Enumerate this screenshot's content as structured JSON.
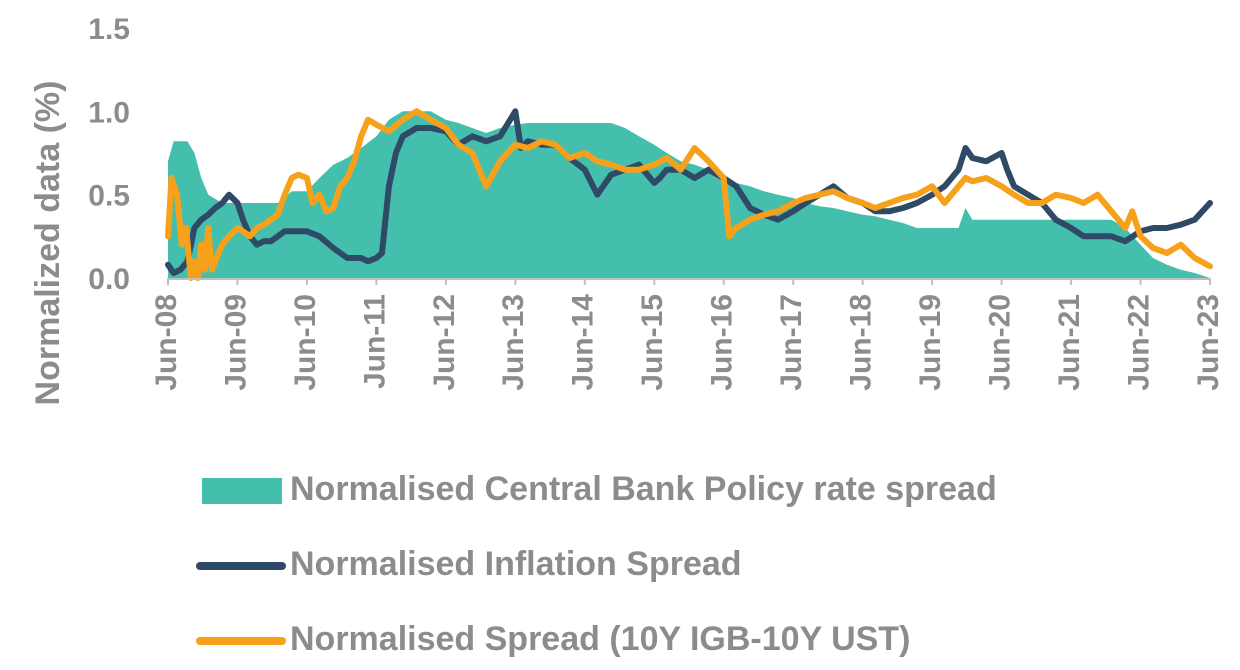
{
  "chart_data": {
    "type": "area+line",
    "ylabel": "Normalized data (%)",
    "ylim": [
      0,
      1.5
    ],
    "yticks": [
      "0.0",
      "0.5",
      "1.0",
      "1.5"
    ],
    "categories": [
      "Jun-08",
      "Jun-09",
      "Jun-10",
      "Jun-11",
      "Jun-12",
      "Jun-13",
      "Jun-14",
      "Jun-15",
      "Jun-16",
      "Jun-17",
      "Jun-18",
      "Jun-19",
      "Jun-20",
      "Jun-21",
      "Jun-22",
      "Jun-23"
    ],
    "grid": false,
    "legend_position": "bottom",
    "colors": {
      "policy": "#45bfad",
      "inflation": "#2f4a66",
      "bond": "#f7a11a",
      "text": "#8c8c8c"
    },
    "series": [
      {
        "name": "Normalised Central Bank Policy rate spread",
        "kind": "area",
        "x": [
          2008.42,
          2008.5,
          2008.6,
          2008.7,
          2008.8,
          2008.9,
          2009.0,
          2009.2,
          2009.42,
          2009.6,
          2009.8,
          2010.0,
          2010.2,
          2010.42,
          2010.6,
          2010.8,
          2011.0,
          2011.2,
          2011.42,
          2011.6,
          2011.8,
          2012.0,
          2012.2,
          2012.42,
          2012.6,
          2012.8,
          2013.0,
          2013.2,
          2013.42,
          2013.6,
          2013.8,
          2014.0,
          2014.2,
          2014.42,
          2014.6,
          2014.8,
          2015.0,
          2015.2,
          2015.42,
          2015.6,
          2015.8,
          2016.0,
          2016.2,
          2016.42,
          2016.6,
          2016.8,
          2017.0,
          2017.2,
          2017.42,
          2017.6,
          2017.8,
          2018.0,
          2018.2,
          2018.42,
          2018.6,
          2018.8,
          2019.0,
          2019.2,
          2019.42,
          2019.6,
          2019.8,
          2019.9,
          2020.0,
          2020.2,
          2020.42,
          2020.6,
          2020.8,
          2021.0,
          2021.2,
          2021.42,
          2021.6,
          2021.8,
          2022.0,
          2022.2,
          2022.42,
          2022.6,
          2022.8,
          2023.0,
          2023.2,
          2023.42
        ],
        "values": [
          0.7,
          0.82,
          0.82,
          0.82,
          0.75,
          0.6,
          0.5,
          0.45,
          0.45,
          0.45,
          0.45,
          0.45,
          0.52,
          0.52,
          0.6,
          0.68,
          0.72,
          0.78,
          0.85,
          0.95,
          1.0,
          1.0,
          1.0,
          0.95,
          0.93,
          0.9,
          0.87,
          0.9,
          0.92,
          0.93,
          0.93,
          0.93,
          0.93,
          0.93,
          0.93,
          0.93,
          0.9,
          0.85,
          0.8,
          0.75,
          0.7,
          0.68,
          0.65,
          0.6,
          0.57,
          0.55,
          0.52,
          0.5,
          0.48,
          0.45,
          0.43,
          0.42,
          0.4,
          0.38,
          0.37,
          0.35,
          0.33,
          0.3,
          0.3,
          0.3,
          0.3,
          0.42,
          0.35,
          0.35,
          0.35,
          0.35,
          0.35,
          0.35,
          0.35,
          0.35,
          0.35,
          0.35,
          0.35,
          0.3,
          0.2,
          0.12,
          0.08,
          0.05,
          0.03,
          0.0
        ]
      },
      {
        "name": "Normalised Inflation Spread",
        "kind": "line",
        "x": [
          2008.42,
          2008.5,
          2008.6,
          2008.7,
          2008.8,
          2008.9,
          2009.0,
          2009.1,
          2009.2,
          2009.3,
          2009.42,
          2009.5,
          2009.6,
          2009.7,
          2009.8,
          2009.9,
          2010.0,
          2010.1,
          2010.2,
          2010.42,
          2010.6,
          2010.8,
          2011.0,
          2011.2,
          2011.3,
          2011.42,
          2011.5,
          2011.6,
          2011.7,
          2011.8,
          2012.0,
          2012.2,
          2012.42,
          2012.6,
          2012.8,
          2013.0,
          2013.2,
          2013.42,
          2013.5,
          2013.6,
          2013.8,
          2014.0,
          2014.2,
          2014.42,
          2014.6,
          2014.8,
          2015.0,
          2015.2,
          2015.42,
          2015.5,
          2015.6,
          2015.8,
          2016.0,
          2016.2,
          2016.42,
          2016.6,
          2016.8,
          2017.0,
          2017.2,
          2017.42,
          2017.6,
          2017.8,
          2018.0,
          2018.2,
          2018.42,
          2018.6,
          2018.8,
          2019.0,
          2019.2,
          2019.42,
          2019.6,
          2019.8,
          2019.9,
          2020.0,
          2020.2,
          2020.42,
          2020.5,
          2020.6,
          2020.8,
          2021.0,
          2021.2,
          2021.42,
          2021.6,
          2021.8,
          2022.0,
          2022.2,
          2022.42,
          2022.6,
          2022.8,
          2023.0,
          2023.2,
          2023.42
        ],
        "values": [
          0.08,
          0.03,
          0.05,
          0.1,
          0.3,
          0.35,
          0.38,
          0.42,
          0.45,
          0.5,
          0.45,
          0.35,
          0.25,
          0.2,
          0.22,
          0.22,
          0.25,
          0.28,
          0.28,
          0.28,
          0.25,
          0.18,
          0.12,
          0.12,
          0.1,
          0.12,
          0.15,
          0.55,
          0.75,
          0.85,
          0.9,
          0.9,
          0.88,
          0.8,
          0.85,
          0.82,
          0.85,
          1.0,
          0.78,
          0.82,
          0.8,
          0.8,
          0.72,
          0.65,
          0.5,
          0.62,
          0.65,
          0.68,
          0.57,
          0.6,
          0.65,
          0.65,
          0.6,
          0.65,
          0.6,
          0.55,
          0.42,
          0.38,
          0.35,
          0.4,
          0.45,
          0.5,
          0.55,
          0.48,
          0.45,
          0.4,
          0.4,
          0.42,
          0.45,
          0.5,
          0.55,
          0.65,
          0.78,
          0.72,
          0.7,
          0.75,
          0.65,
          0.55,
          0.5,
          0.45,
          0.35,
          0.3,
          0.25,
          0.25,
          0.25,
          0.22,
          0.28,
          0.3,
          0.3,
          0.32,
          0.35,
          0.45
        ]
      },
      {
        "name": "Normalised Spread (10Y IGB-10Y UST)",
        "kind": "line",
        "x": [
          2008.42,
          2008.47,
          2008.55,
          2008.62,
          2008.68,
          2008.75,
          2008.8,
          2008.85,
          2008.9,
          2008.95,
          2009.0,
          2009.05,
          2009.1,
          2009.2,
          2009.3,
          2009.42,
          2009.5,
          2009.6,
          2009.7,
          2009.8,
          2009.9,
          2010.0,
          2010.1,
          2010.2,
          2010.3,
          2010.42,
          2010.5,
          2010.6,
          2010.7,
          2010.8,
          2010.9,
          2011.0,
          2011.1,
          2011.2,
          2011.3,
          2011.42,
          2011.6,
          2011.8,
          2012.0,
          2012.2,
          2012.42,
          2012.6,
          2012.8,
          2013.0,
          2013.2,
          2013.42,
          2013.6,
          2013.8,
          2014.0,
          2014.2,
          2014.42,
          2014.6,
          2014.8,
          2015.0,
          2015.2,
          2015.42,
          2015.6,
          2015.8,
          2016.0,
          2016.2,
          2016.42,
          2016.5,
          2016.6,
          2016.8,
          2017.0,
          2017.2,
          2017.42,
          2017.6,
          2017.8,
          2018.0,
          2018.2,
          2018.42,
          2018.6,
          2018.8,
          2019.0,
          2019.2,
          2019.42,
          2019.6,
          2019.8,
          2019.9,
          2020.0,
          2020.2,
          2020.42,
          2020.6,
          2020.8,
          2021.0,
          2021.2,
          2021.42,
          2021.6,
          2021.8,
          2022.0,
          2022.1,
          2022.2,
          2022.3,
          2022.42,
          2022.6,
          2022.8,
          2023.0,
          2023.2,
          2023.42
        ],
        "values": [
          0.25,
          0.6,
          0.5,
          0.2,
          0.3,
          0.0,
          0.1,
          0.0,
          0.2,
          0.05,
          0.3,
          0.05,
          0.1,
          0.2,
          0.25,
          0.3,
          0.28,
          0.25,
          0.3,
          0.32,
          0.35,
          0.38,
          0.5,
          0.6,
          0.62,
          0.6,
          0.45,
          0.5,
          0.4,
          0.42,
          0.55,
          0.6,
          0.7,
          0.85,
          0.95,
          0.92,
          0.88,
          0.95,
          1.0,
          0.95,
          0.9,
          0.8,
          0.75,
          0.55,
          0.7,
          0.8,
          0.78,
          0.82,
          0.8,
          0.72,
          0.75,
          0.7,
          0.68,
          0.65,
          0.65,
          0.68,
          0.72,
          0.65,
          0.78,
          0.7,
          0.6,
          0.25,
          0.3,
          0.35,
          0.38,
          0.4,
          0.45,
          0.48,
          0.5,
          0.52,
          0.48,
          0.45,
          0.42,
          0.45,
          0.48,
          0.5,
          0.55,
          0.45,
          0.55,
          0.6,
          0.58,
          0.6,
          0.55,
          0.5,
          0.45,
          0.45,
          0.5,
          0.48,
          0.45,
          0.5,
          0.4,
          0.35,
          0.3,
          0.4,
          0.25,
          0.18,
          0.15,
          0.2,
          0.12,
          0.07
        ]
      }
    ]
  }
}
